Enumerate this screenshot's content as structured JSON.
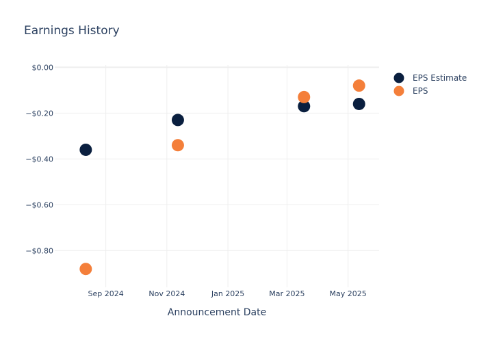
{
  "chart_data": {
    "type": "scatter",
    "title": "Earnings History",
    "xlabel": "Announcement Date",
    "ylabel": "",
    "x_ticks": [
      {
        "label": "Sep 2024",
        "date": "2024-09-01"
      },
      {
        "label": "Nov 2024",
        "date": "2024-11-01"
      },
      {
        "label": "Jan 2025",
        "date": "2025-01-01"
      },
      {
        "label": "Mar 2025",
        "date": "2025-03-01"
      },
      {
        "label": "May 2025",
        "date": "2025-05-01"
      }
    ],
    "xlim": [
      "2024-07-12",
      "2025-06-01"
    ],
    "y_ticks": [
      0,
      -0.2,
      -0.4,
      -0.6,
      -0.8
    ],
    "y_tick_labels": [
      "$0.00",
      "−$0.20",
      "−$0.40",
      "−$0.60",
      "−$0.80"
    ],
    "ylim": [
      -0.96,
      0.01
    ],
    "legend_position": "top-right",
    "series": [
      {
        "name": "EPS Estimate",
        "color": "#0a1f3f",
        "points": [
          {
            "x": "2024-08-12",
            "y": -0.36
          },
          {
            "x": "2024-11-12",
            "y": -0.23
          },
          {
            "x": "2025-03-18",
            "y": -0.17
          },
          {
            "x": "2025-05-12",
            "y": -0.16
          }
        ]
      },
      {
        "name": "EPS",
        "color": "#f47f3a",
        "points": [
          {
            "x": "2024-08-12",
            "y": -0.88
          },
          {
            "x": "2024-11-12",
            "y": -0.34
          },
          {
            "x": "2025-03-18",
            "y": -0.13
          },
          {
            "x": "2025-05-12",
            "y": -0.08
          }
        ]
      }
    ]
  }
}
